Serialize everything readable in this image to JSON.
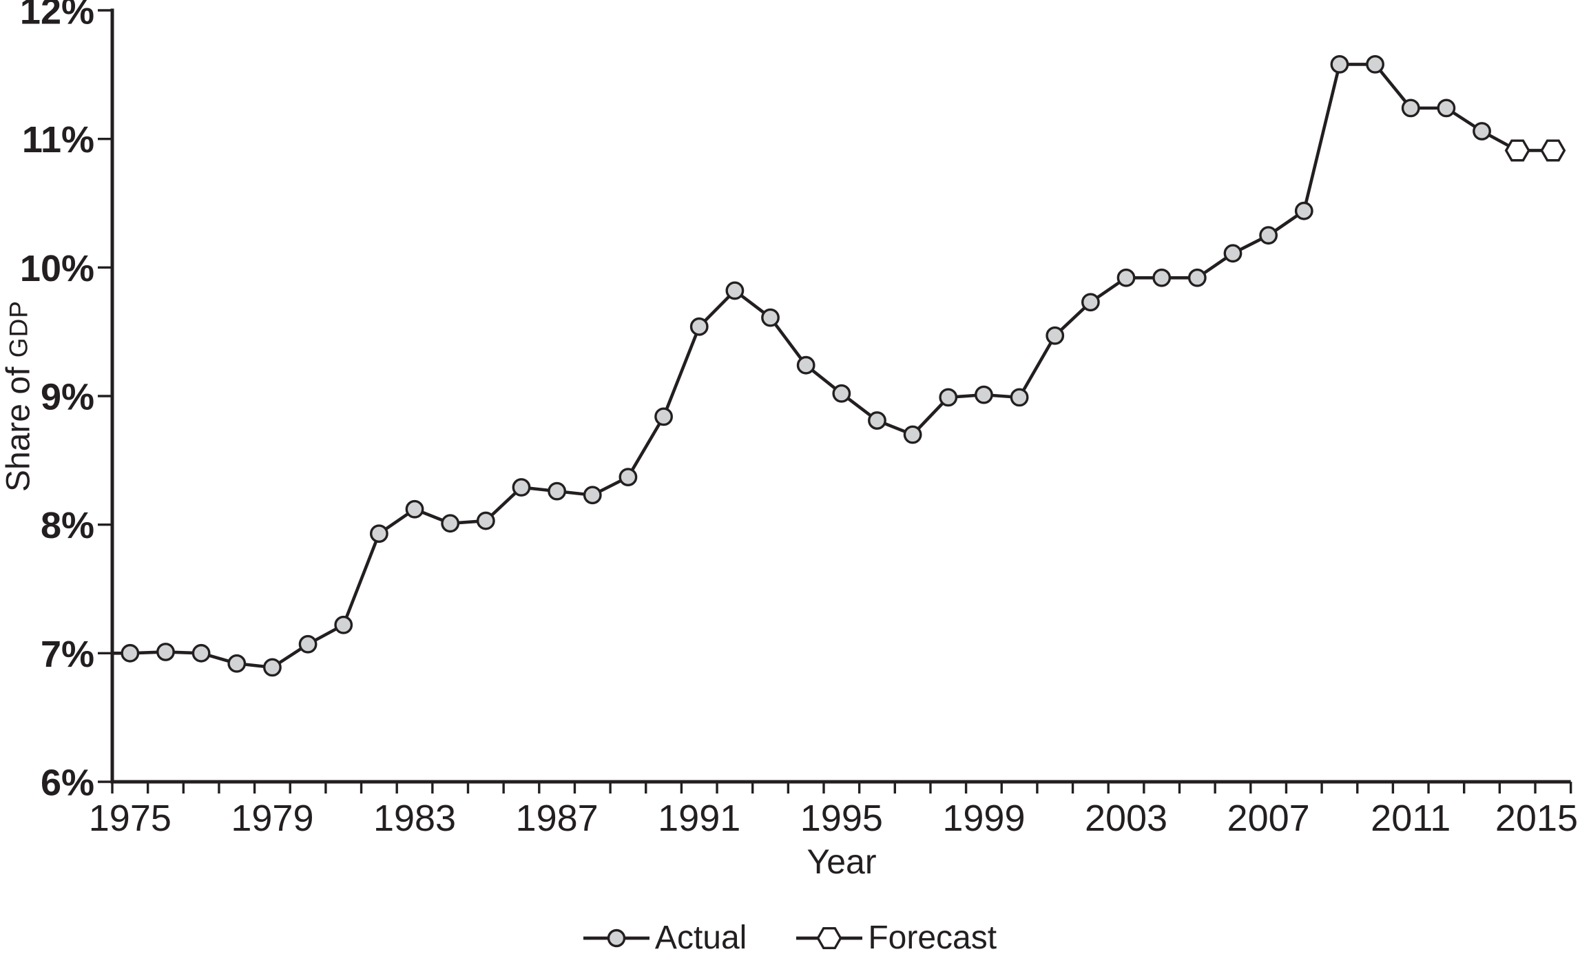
{
  "chart_data": {
    "type": "line",
    "title": "",
    "xlabel": "Year",
    "ylabel": "Share of GDP",
    "ylabel_parts": {
      "main": "Share of",
      "small_caps": "GDP"
    },
    "ylim": [
      6,
      12
    ],
    "xlim": [
      1974.5,
      2015.5
    ],
    "grid": false,
    "legend_position": "bottom-center",
    "colors": {
      "line": "#231f20",
      "actual_marker_fill": "#d2d3d5",
      "forecast_marker_fill": "#ffffff",
      "text": "#231f20",
      "background": "#ffffff"
    },
    "y_axis": {
      "ticks": [
        {
          "value": 6,
          "label": "6%"
        },
        {
          "value": 7,
          "label": "7%"
        },
        {
          "value": 8,
          "label": "8%"
        },
        {
          "value": 9,
          "label": "9%"
        },
        {
          "value": 10,
          "label": "10%"
        },
        {
          "value": 11,
          "label": "11%"
        },
        {
          "value": 12,
          "label": "12%"
        }
      ]
    },
    "x_axis": {
      "minor_tick_interval_years": 1,
      "labeled_ticks": [
        {
          "year": 1975,
          "label": "1975"
        },
        {
          "year": 1979,
          "label": "1979"
        },
        {
          "year": 1983,
          "label": "1983"
        },
        {
          "year": 1987,
          "label": "1987"
        },
        {
          "year": 1991,
          "label": "1991"
        },
        {
          "year": 1995,
          "label": "1995"
        },
        {
          "year": 1999,
          "label": "1999"
        },
        {
          "year": 2003,
          "label": "2003"
        },
        {
          "year": 2007,
          "label": "2007"
        },
        {
          "year": 2011,
          "label": "2011"
        },
        {
          "year": 2015,
          "label": "2015"
        }
      ]
    },
    "series": [
      {
        "name": "Actual",
        "marker": "circle",
        "years": [
          1975,
          1976,
          1977,
          1978,
          1979,
          1980,
          1981,
          1982,
          1983,
          1984,
          1985,
          1986,
          1987,
          1988,
          1989,
          1990,
          1991,
          1992,
          1993,
          1994,
          1995,
          1996,
          1997,
          1998,
          1999,
          2000,
          2001,
          2002,
          2003,
          2004,
          2005,
          2006,
          2007,
          2008,
          2009,
          2010,
          2011,
          2012,
          2013
        ],
        "values": [
          7.0,
          7.01,
          7.0,
          6.92,
          6.89,
          7.07,
          7.22,
          7.93,
          8.12,
          8.01,
          8.03,
          8.29,
          8.26,
          8.23,
          8.37,
          8.84,
          9.54,
          9.82,
          9.61,
          9.24,
          9.02,
          8.81,
          8.7,
          8.99,
          9.01,
          8.99,
          9.47,
          9.73,
          9.92,
          9.92,
          9.92,
          10.11,
          10.25,
          10.44,
          11.58,
          11.58,
          11.24,
          11.24,
          11.06
        ]
      },
      {
        "name": "Forecast",
        "marker": "hexagon",
        "years": [
          2014,
          2015
        ],
        "values": [
          10.91,
          10.91
        ]
      }
    ]
  },
  "legend": {
    "actual_label": "Actual",
    "forecast_label": "Forecast"
  }
}
